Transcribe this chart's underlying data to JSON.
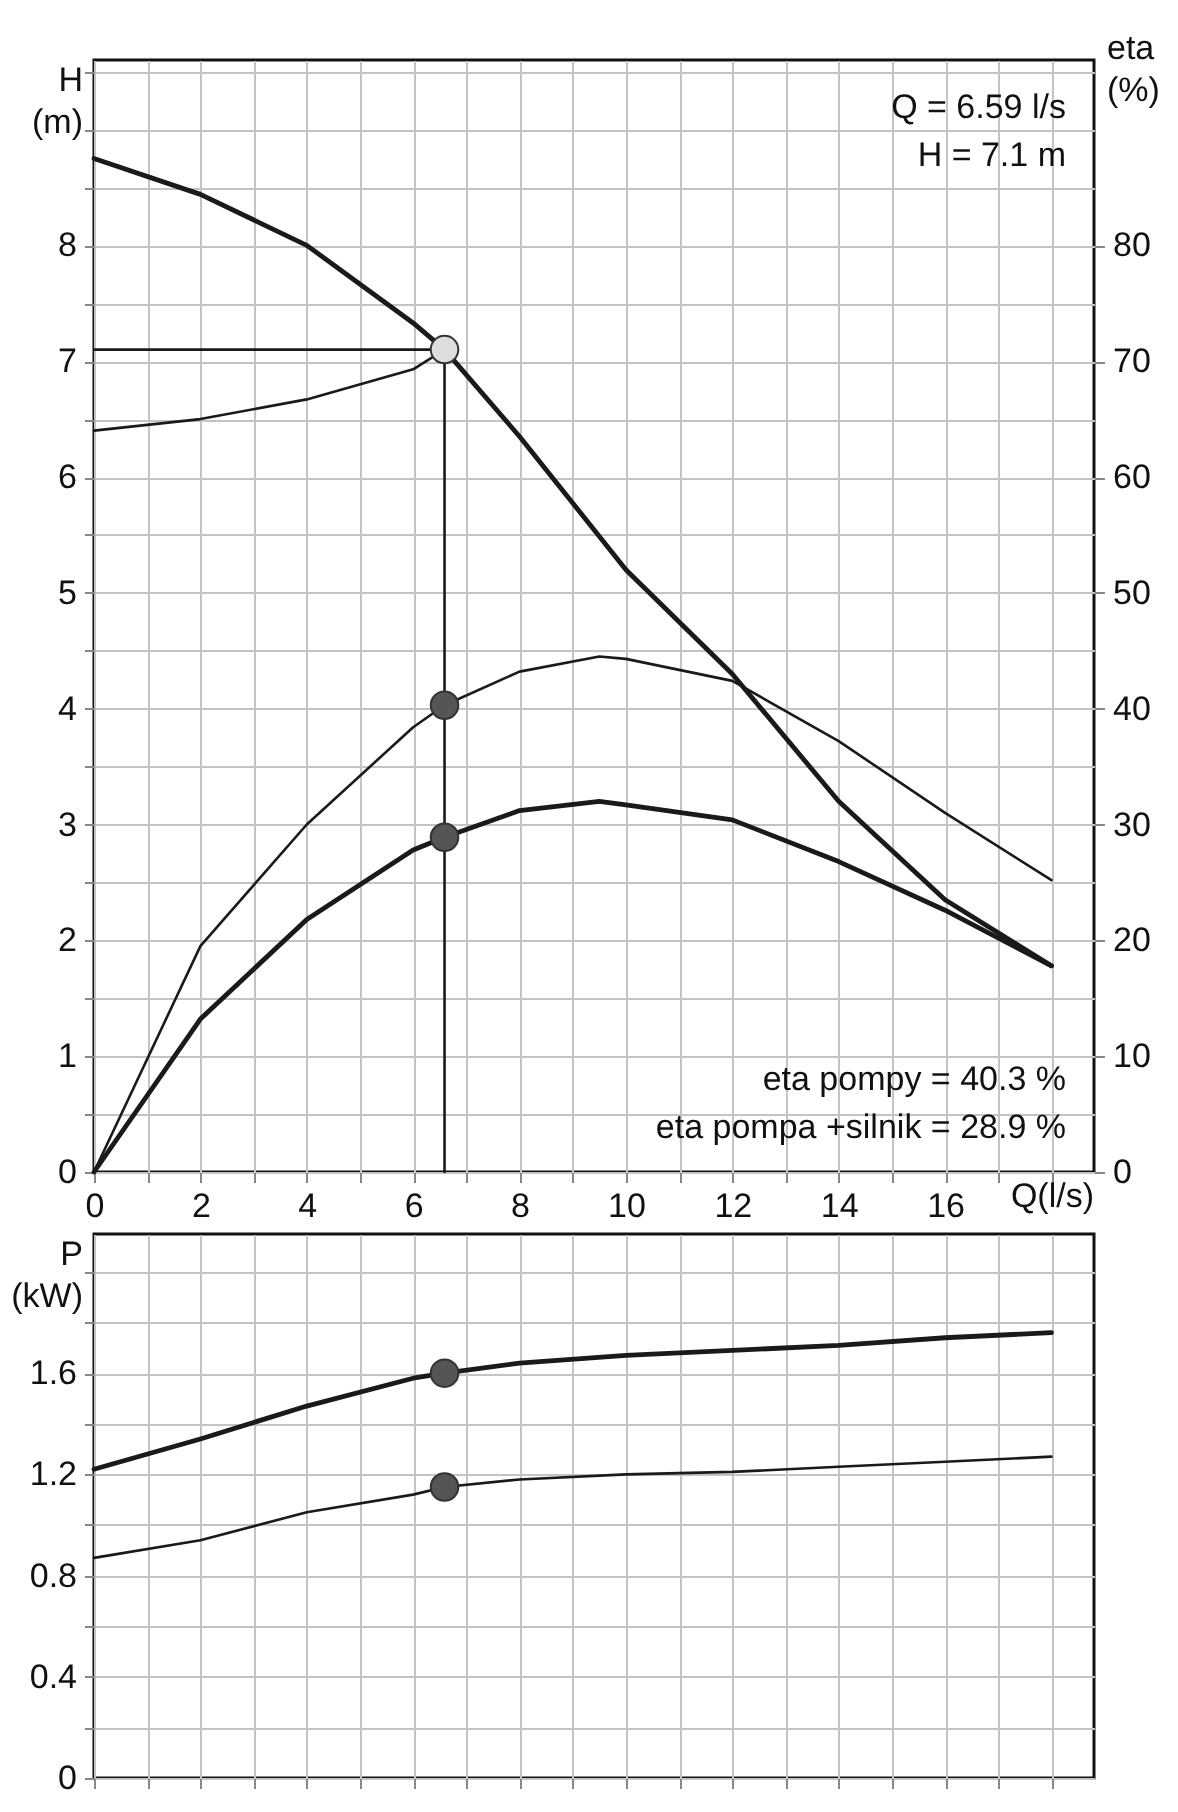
{
  "chart_data": [
    {
      "type": "line",
      "xlabel": "Q(l/s)",
      "ylabel": "H\n(m)",
      "y2label": "eta\n(%)",
      "xlim": [
        0,
        18.8
      ],
      "ylim": [
        0,
        9.6
      ],
      "y2lim": [
        0,
        96
      ],
      "xticks": [
        0,
        {
          "value": 1,
          "label": null
        },
        2,
        {
          "value": 3,
          "label": null
        },
        4,
        {
          "value": 5,
          "label": null
        },
        6,
        {
          "value": 7,
          "label": null
        },
        8,
        {
          "value": 9,
          "label": null
        },
        10,
        {
          "value": 11,
          "label": null
        },
        12,
        {
          "value": 13,
          "label": null
        },
        14,
        {
          "value": 15,
          "label": null
        },
        16,
        {
          "value": 17,
          "label": null
        },
        {
          "value": 18,
          "label": null
        }
      ],
      "yticks": [
        0,
        {
          "value": 0.5,
          "label": null
        },
        1,
        {
          "value": 1.5,
          "label": null
        },
        2,
        {
          "value": 2.5,
          "label": null
        },
        3,
        {
          "value": 3.5,
          "label": null
        },
        4,
        {
          "value": 4.5,
          "label": null
        },
        5,
        {
          "value": 5.5,
          "label": null
        },
        6,
        {
          "value": 6.5,
          "label": null
        },
        7,
        {
          "value": 7.5,
          "label": null
        },
        8,
        {
          "value": 8.5,
          "label": null
        },
        {
          "value": 9,
          "label": null
        },
        {
          "value": 9.5,
          "label": null
        }
      ],
      "y2ticks": [
        0,
        10,
        20,
        30,
        40,
        50,
        60,
        70,
        80
      ],
      "grid": true,
      "legend": false,
      "annotations": [
        "Q = 6.59 l/s",
        "H = 7.1 m",
        "eta pompy = 40.3 %",
        "eta pompa +silnik = 28.9 %"
      ],
      "series": [
        {
          "type": "line",
          "marker": "none",
          "line_style": "solid",
          "color": "#1a1a1a",
          "x": [
            0,
            2,
            4,
            6,
            6.59,
            8,
            10,
            12,
            14,
            16,
            18
          ],
          "values": [
            8.75,
            8.44,
            8.0,
            7.33,
            7.1,
            6.35,
            5.2,
            4.3,
            3.2,
            2.35,
            1.78
          ]
        },
        {
          "type": "line",
          "marker": "none",
          "line_style": "solid",
          "color": "#1a1a1a",
          "x": [
            0,
            2,
            4,
            6,
            6.59
          ],
          "values": [
            6.4,
            6.5,
            6.67,
            6.93,
            7.1
          ]
        },
        {
          "type": "line",
          "marker": "none",
          "line_style": "solid",
          "color": "#1a1a1a",
          "x": [
            0,
            6.59,
            6.59
          ],
          "values": [
            7.1,
            7.1,
            0
          ]
        },
        {
          "type": "line",
          "marker": "none",
          "line_style": "solid",
          "axis": "y2",
          "color": "#1a1a1a",
          "x": [
            0,
            2,
            4,
            6,
            6.59,
            8,
            9.5,
            10,
            12,
            14,
            16,
            18
          ],
          "values": [
            0,
            19.5,
            30,
            38.4,
            40.3,
            43.2,
            44.5,
            44.3,
            42.4,
            37.2,
            31,
            25.2
          ]
        },
        {
          "type": "line",
          "marker": "none",
          "line_style": "solid",
          "axis": "y2",
          "color": "#1a1a1a",
          "x": [
            0,
            2,
            4,
            6,
            6.59,
            8,
            9.5,
            10,
            12,
            14,
            16,
            18
          ],
          "values": [
            0,
            13.2,
            21.8,
            27.8,
            28.9,
            31.2,
            32,
            31.7,
            30.4,
            26.8,
            22.6,
            17.8
          ]
        },
        {
          "type": "scatter",
          "marker": "circle",
          "color": "#dddddd",
          "x": [
            6.59
          ],
          "values": [
            7.1
          ]
        },
        {
          "type": "scatter",
          "marker": "circle",
          "axis": "y2",
          "color": "#555555",
          "x": [
            6.59,
            6.59
          ],
          "values": [
            40.3,
            28.9
          ]
        }
      ]
    },
    {
      "type": "line",
      "ylabel": "P\n(kW)",
      "xlim": [
        0,
        18.8
      ],
      "ylim": [
        0,
        2.15
      ],
      "tick_labels": "y",
      "xticks": [
        0,
        {
          "value": 1,
          "label": null
        },
        2,
        {
          "value": 3,
          "label": null
        },
        4,
        {
          "value": 5,
          "label": null
        },
        6,
        {
          "value": 7,
          "label": null
        },
        8,
        {
          "value": 9,
          "label": null
        },
        10,
        {
          "value": 11,
          "label": null
        },
        12,
        {
          "value": 13,
          "label": null
        },
        14,
        {
          "value": 15,
          "label": null
        },
        16,
        {
          "value": 17,
          "label": null
        },
        {
          "value": 18,
          "label": null
        }
      ],
      "yticks": [
        0,
        {
          "value": 0.2,
          "label": null
        },
        0.4,
        {
          "value": 0.6,
          "label": null
        },
        0.8,
        {
          "value": 1.0,
          "label": null
        },
        1.2,
        {
          "value": 1.4,
          "label": null
        },
        1.6,
        {
          "value": 1.8,
          "label": null
        },
        {
          "value": 2.0,
          "label": null
        }
      ],
      "grid": true,
      "legend": false,
      "series": [
        {
          "type": "line",
          "marker": "none",
          "line_style": "solid",
          "color": "#1a1a1a",
          "x": [
            0,
            2,
            4,
            6,
            6.59,
            8,
            10,
            12,
            14,
            16,
            18
          ],
          "values": [
            1.22,
            1.34,
            1.47,
            1.58,
            1.6,
            1.64,
            1.67,
            1.69,
            1.71,
            1.74,
            1.76
          ]
        },
        {
          "type": "line",
          "marker": "none",
          "line_style": "solid",
          "color": "#1a1a1a",
          "x": [
            0,
            2,
            4,
            6,
            6.59,
            8,
            10,
            12,
            14,
            16,
            18
          ],
          "values": [
            0.87,
            0.94,
            1.05,
            1.12,
            1.15,
            1.18,
            1.2,
            1.21,
            1.23,
            1.25,
            1.27
          ]
        },
        {
          "type": "scatter",
          "marker": "circle",
          "color": "#555555",
          "x": [
            6.59,
            6.59
          ],
          "values": [
            1.6,
            1.15
          ]
        }
      ]
    }
  ]
}
